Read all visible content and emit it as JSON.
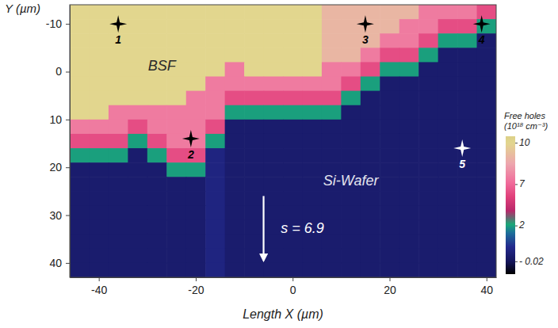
{
  "chart_data": {
    "type": "heatmap",
    "xlabel": "Length X (µm)",
    "ylabel": "Y (µm)",
    "xlim": [
      -46,
      42
    ],
    "ylim": [
      -14,
      43
    ],
    "xticks": [
      -40,
      -20,
      0,
      20,
      40
    ],
    "yticks": [
      -10,
      0,
      10,
      20,
      30,
      40
    ],
    "x": [
      -44,
      -40,
      -36,
      -32,
      -28,
      -24,
      -20,
      -16,
      -12,
      -8,
      -4,
      0,
      4,
      8,
      12,
      16,
      20,
      24,
      28,
      32,
      36,
      40
    ],
    "y": [
      -12.5,
      -9.5,
      -6.5,
      -3.5,
      -0.5,
      2.5,
      5.5,
      8.5,
      11.5,
      14.5,
      17.5,
      20.5,
      23.5,
      26.5,
      29.5,
      32.5,
      35.5,
      38.5,
      41.5
    ],
    "z": [
      [
        10,
        10,
        10,
        10,
        10,
        10,
        10,
        10,
        10,
        10,
        10,
        10,
        10,
        9,
        9,
        9,
        9,
        9,
        7.5,
        7.5,
        7.5,
        6
      ],
      [
        10,
        10,
        10,
        10,
        10,
        10,
        10,
        10,
        10,
        10,
        10,
        10,
        10,
        9,
        9,
        9,
        9,
        7.5,
        7.5,
        6,
        6,
        2
      ],
      [
        10,
        10,
        10,
        10,
        10,
        10,
        10,
        10,
        10,
        10,
        10,
        10,
        10,
        9,
        9,
        9,
        7.5,
        7.5,
        6,
        2,
        2,
        0.3
      ],
      [
        10,
        10,
        10,
        10,
        10,
        10,
        10,
        10,
        10,
        10,
        10,
        10,
        10,
        9,
        9,
        7.5,
        6,
        6,
        2,
        0.3,
        0.3,
        0.3
      ],
      [
        10,
        10,
        10,
        10,
        10,
        10,
        10,
        10,
        7.5,
        10,
        10,
        10,
        10,
        7.5,
        7.5,
        6,
        2,
        2,
        0.3,
        0.3,
        0.3,
        0.3
      ],
      [
        10,
        10,
        10,
        10,
        10,
        10,
        10,
        7.5,
        7.5,
        7.5,
        7.5,
        7.5,
        7.5,
        7.5,
        6,
        2,
        0.3,
        0.3,
        0.3,
        0.3,
        0.3,
        0.3
      ],
      [
        10,
        10,
        10,
        10,
        10,
        10,
        7.5,
        7.5,
        6,
        6,
        6,
        6,
        6,
        6,
        2,
        0.3,
        0.3,
        0.3,
        0.3,
        0.3,
        0.3,
        0.3
      ],
      [
        10,
        10,
        7.5,
        7.5,
        7.5,
        7.5,
        7.5,
        7.5,
        2,
        2,
        2,
        2,
        2,
        2,
        0.3,
        0.3,
        0.3,
        0.3,
        0.3,
        0.3,
        0.3,
        0.3
      ],
      [
        7.5,
        7.5,
        7.5,
        6,
        7.5,
        7.5,
        7.5,
        6,
        0.3,
        0.3,
        0.3,
        0.3,
        0.3,
        0.3,
        0.3,
        0.3,
        0.3,
        0.3,
        0.3,
        0.3,
        0.3,
        0.3
      ],
      [
        6,
        6,
        6,
        2,
        6,
        7.5,
        7.5,
        2,
        0.3,
        0.3,
        0.3,
        0.3,
        0.3,
        0.3,
        0.3,
        0.3,
        0.3,
        0.3,
        0.3,
        0.3,
        0.3,
        0.3
      ],
      [
        2,
        2,
        2,
        0.3,
        2,
        6,
        6,
        0.6,
        0.3,
        0.3,
        0.3,
        0.3,
        0.3,
        0.3,
        0.3,
        0.3,
        0.3,
        0.3,
        0.3,
        0.3,
        0.3,
        0.3
      ],
      [
        0.3,
        0.3,
        0.3,
        0.3,
        0.3,
        2,
        2,
        0.6,
        0.3,
        0.3,
        0.3,
        0.3,
        0.3,
        0.3,
        0.3,
        0.3,
        0.3,
        0.3,
        0.3,
        0.3,
        0.3,
        0.3
      ],
      [
        0.3,
        0.3,
        0.3,
        0.3,
        0.3,
        0.3,
        0.3,
        0.6,
        0.3,
        0.3,
        0.3,
        0.3,
        0.3,
        0.3,
        0.3,
        0.3,
        0.3,
        0.3,
        0.3,
        0.3,
        0.3,
        0.3
      ],
      [
        0.3,
        0.3,
        0.3,
        0.3,
        0.3,
        0.3,
        0.3,
        0.6,
        0.3,
        0.3,
        0.3,
        0.3,
        0.3,
        0.3,
        0.3,
        0.3,
        0.3,
        0.3,
        0.3,
        0.3,
        0.3,
        0.3
      ],
      [
        0.3,
        0.3,
        0.3,
        0.3,
        0.3,
        0.3,
        0.3,
        0.6,
        0.3,
        0.3,
        0.3,
        0.3,
        0.3,
        0.3,
        0.3,
        0.3,
        0.3,
        0.3,
        0.3,
        0.3,
        0.3,
        0.3
      ],
      [
        0.3,
        0.3,
        0.3,
        0.3,
        0.3,
        0.3,
        0.3,
        0.6,
        0.3,
        0.3,
        0.3,
        0.3,
        0.3,
        0.3,
        0.3,
        0.3,
        0.3,
        0.3,
        0.3,
        0.3,
        0.3,
        0.3
      ],
      [
        0.3,
        0.3,
        0.3,
        0.3,
        0.3,
        0.3,
        0.3,
        0.6,
        0.3,
        0.3,
        0.3,
        0.3,
        0.3,
        0.3,
        0.3,
        0.3,
        0.3,
        0.3,
        0.3,
        0.3,
        0.3,
        0.3
      ],
      [
        0.3,
        0.3,
        0.3,
        0.3,
        0.3,
        0.3,
        0.3,
        0.6,
        0.3,
        0.3,
        0.3,
        0.3,
        0.3,
        0.3,
        0.3,
        0.3,
        0.3,
        0.3,
        0.3,
        0.3,
        0.3,
        0.3
      ],
      [
        0.3,
        0.3,
        0.3,
        0.3,
        0.3,
        0.3,
        0.3,
        0.6,
        0.3,
        0.3,
        0.3,
        0.3,
        0.3,
        0.3,
        0.3,
        0.3,
        0.3,
        0.3,
        0.3,
        0.3,
        0.3,
        0.3
      ]
    ],
    "colorbar": {
      "label": [
        "Free holes",
        "(10¹⁸ cm⁻³)"
      ],
      "range": [
        -0.5,
        10.5
      ],
      "ticks": [
        {
          "value": -0.02,
          "label": "- 0.02"
        },
        2,
        7,
        10
      ]
    },
    "marker": "star",
    "points": [
      {
        "label": "1",
        "x": -36,
        "y": -10,
        "color": "#000000"
      },
      {
        "label": "2",
        "x": -21,
        "y": 14,
        "color": "#000000"
      },
      {
        "label": "3",
        "x": 15,
        "y": -10,
        "color": "#000000"
      },
      {
        "label": "4",
        "x": 39,
        "y": -10,
        "color": "#000000"
      },
      {
        "label": "5",
        "x": 35,
        "y": 16,
        "color": "#ffffff"
      }
    ],
    "annotations": [
      {
        "text": "BSF",
        "x": -27,
        "y": -1,
        "color": "#2a2a2a"
      },
      {
        "text": "Si-Wafer",
        "x": 12,
        "y": 23,
        "color": "#e4e4ee"
      },
      {
        "text": "s = 6.9",
        "x": 2,
        "y": 33,
        "color": "#ffffff",
        "arrow": {
          "x": -6,
          "y": [
            26,
            39.5
          ]
        }
      }
    ]
  }
}
